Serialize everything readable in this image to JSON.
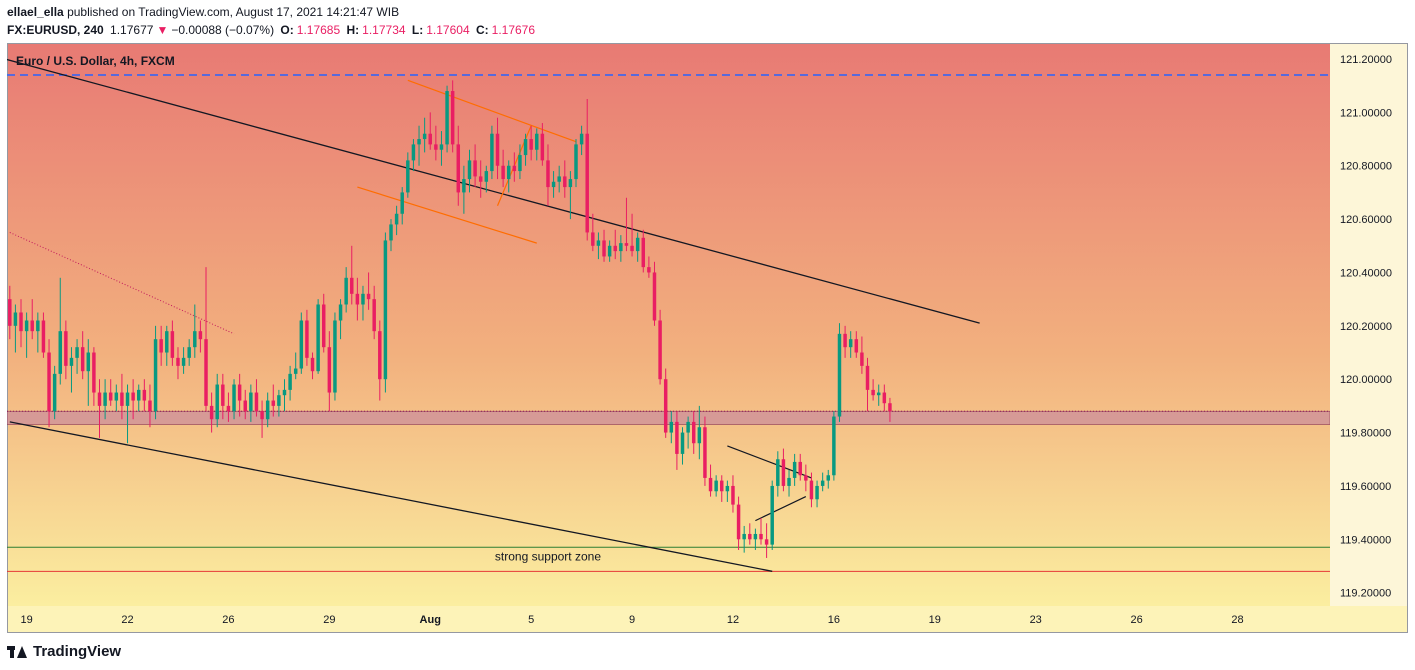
{
  "header": {
    "user": "ellael_ella",
    "published_text": "published on TradingView.com, August 17, 2021 14:21:47 WIB",
    "symbol": "FX:EURUSD, 240",
    "last": "1.17677",
    "change_arrow": "▼",
    "change": "−0.00088 (−0.07%)",
    "o_label": "O:",
    "o_value": "1.17685",
    "h_label": "H:",
    "h_value": "1.17734",
    "l_label": "L:",
    "l_value": "1.17604",
    "c_label": "C:",
    "c_value": "1.17676"
  },
  "footer": {
    "brand": "TradingView",
    "logo_icon": "tradingview-logo-icon"
  },
  "colors": {
    "bull": "#089981",
    "bear": "#e91e63",
    "gradient_top": "#e87a74",
    "gradient_mid": "#f2b07e",
    "gradient_bottom": "#fbeea0"
  },
  "chart_data": {
    "type": "candlestick",
    "title": "Euro / U.S. Dollar, 4h, FXCM",
    "y_ticks": [
      "121.20000",
      "121.00000",
      "120.80000",
      "120.60000",
      "120.40000",
      "120.20000",
      "120.00000",
      "119.80000",
      "119.60000",
      "119.40000",
      "119.20000"
    ],
    "ylim": [
      119.15,
      121.26
    ],
    "x_ticks": [
      {
        "label": "19",
        "bar": 3
      },
      {
        "label": "22",
        "bar": 21
      },
      {
        "label": "26",
        "bar": 39
      },
      {
        "label": "29",
        "bar": 57
      },
      {
        "label": "Aug",
        "bar": 75
      },
      {
        "label": "5",
        "bar": 93
      },
      {
        "label": "9",
        "bar": 111
      },
      {
        "label": "12",
        "bar": 129
      },
      {
        "label": "16",
        "bar": 147
      },
      {
        "label": "19",
        "bar": 165
      },
      {
        "label": "23",
        "bar": 183
      },
      {
        "label": "26",
        "bar": 201
      },
      {
        "label": "28",
        "bar": 219
      }
    ],
    "bar_count": 236,
    "candles": [
      [
        120.3,
        120.35,
        120.15,
        120.2
      ],
      [
        120.2,
        120.28,
        120.1,
        120.25
      ],
      [
        120.25,
        120.3,
        120.12,
        120.18
      ],
      [
        120.18,
        120.25,
        120.08,
        120.22
      ],
      [
        120.22,
        120.3,
        120.15,
        120.18
      ],
      [
        120.18,
        120.25,
        120.1,
        120.22
      ],
      [
        120.22,
        120.25,
        120.08,
        120.1
      ],
      [
        120.1,
        120.15,
        119.82,
        119.88
      ],
      [
        119.88,
        120.05,
        119.85,
        120.02
      ],
      [
        120.02,
        120.38,
        119.98,
        120.18
      ],
      [
        120.18,
        120.22,
        120.0,
        120.05
      ],
      [
        120.05,
        120.12,
        119.95,
        120.08
      ],
      [
        120.08,
        120.15,
        120.02,
        120.12
      ],
      [
        120.12,
        120.18,
        120.0,
        120.03
      ],
      [
        120.03,
        120.15,
        119.9,
        120.1
      ],
      [
        120.1,
        120.12,
        119.9,
        119.95
      ],
      [
        119.95,
        120.0,
        119.78,
        119.9
      ],
      [
        119.9,
        120.0,
        119.85,
        119.95
      ],
      [
        119.95,
        120.0,
        119.9,
        119.92
      ],
      [
        119.92,
        119.98,
        119.88,
        119.95
      ],
      [
        119.95,
        120.02,
        119.85,
        119.9
      ],
      [
        119.9,
        119.98,
        119.76,
        119.95
      ],
      [
        119.95,
        120.0,
        119.85,
        119.92
      ],
      [
        119.92,
        119.98,
        119.88,
        119.96
      ],
      [
        119.96,
        120.0,
        119.88,
        119.92
      ],
      [
        119.92,
        119.98,
        119.82,
        119.88
      ],
      [
        119.88,
        120.2,
        119.85,
        120.15
      ],
      [
        120.15,
        120.2,
        120.05,
        120.1
      ],
      [
        120.1,
        120.2,
        120.05,
        120.18
      ],
      [
        120.18,
        120.22,
        120.05,
        120.08
      ],
      [
        120.08,
        120.12,
        120.0,
        120.05
      ],
      [
        120.05,
        120.12,
        120.02,
        120.08
      ],
      [
        120.08,
        120.15,
        120.05,
        120.12
      ],
      [
        120.12,
        120.28,
        120.08,
        120.18
      ],
      [
        120.18,
        120.22,
        120.1,
        120.15
      ],
      [
        120.15,
        120.42,
        119.88,
        119.9
      ],
      [
        119.9,
        119.95,
        119.8,
        119.85
      ],
      [
        119.85,
        120.02,
        119.82,
        119.98
      ],
      [
        119.98,
        120.02,
        119.85,
        119.9
      ],
      [
        119.9,
        119.95,
        119.84,
        119.88
      ],
      [
        119.88,
        120.0,
        119.85,
        119.98
      ],
      [
        119.98,
        120.02,
        119.86,
        119.92
      ],
      [
        119.92,
        119.96,
        119.85,
        119.88
      ],
      [
        119.88,
        119.98,
        119.84,
        119.95
      ],
      [
        119.95,
        120.0,
        119.86,
        119.88
      ],
      [
        119.88,
        119.92,
        119.78,
        119.85
      ],
      [
        119.85,
        119.95,
        119.82,
        119.92
      ],
      [
        119.92,
        119.98,
        119.86,
        119.9
      ],
      [
        119.9,
        119.96,
        119.86,
        119.94
      ],
      [
        119.94,
        120.0,
        119.88,
        119.96
      ],
      [
        119.96,
        120.05,
        119.92,
        120.02
      ],
      [
        120.02,
        120.1,
        120.0,
        120.04
      ],
      [
        120.04,
        120.25,
        120.02,
        120.22
      ],
      [
        120.22,
        120.26,
        120.05,
        120.08
      ],
      [
        120.08,
        120.1,
        120.0,
        120.03
      ],
      [
        120.03,
        120.3,
        120.02,
        120.28
      ],
      [
        120.28,
        120.32,
        120.1,
        120.12
      ],
      [
        120.12,
        120.18,
        119.88,
        119.95
      ],
      [
        119.95,
        120.25,
        119.92,
        120.22
      ],
      [
        120.22,
        120.3,
        120.15,
        120.28
      ],
      [
        120.28,
        120.42,
        120.25,
        120.38
      ],
      [
        120.38,
        120.5,
        120.28,
        120.32
      ],
      [
        120.32,
        120.38,
        120.22,
        120.28
      ],
      [
        120.28,
        120.35,
        120.22,
        120.32
      ],
      [
        120.32,
        120.4,
        120.26,
        120.3
      ],
      [
        120.3,
        120.35,
        120.15,
        120.18
      ],
      [
        120.18,
        120.22,
        119.92,
        120.0
      ],
      [
        120.0,
        120.55,
        119.95,
        120.52
      ],
      [
        120.52,
        120.6,
        120.48,
        120.58
      ],
      [
        120.58,
        120.65,
        120.54,
        120.62
      ],
      [
        120.62,
        120.72,
        120.58,
        120.7
      ],
      [
        120.7,
        120.85,
        120.68,
        120.82
      ],
      [
        120.82,
        120.9,
        120.78,
        120.88
      ],
      [
        120.88,
        120.95,
        120.8,
        120.9
      ],
      [
        120.9,
        120.98,
        120.85,
        120.92
      ],
      [
        120.92,
        121.0,
        120.86,
        120.88
      ],
      [
        120.88,
        120.95,
        120.82,
        120.86
      ],
      [
        120.86,
        120.93,
        120.8,
        120.88
      ],
      [
        120.88,
        121.1,
        120.85,
        121.08
      ],
      [
        121.08,
        121.12,
        120.85,
        120.88
      ],
      [
        120.88,
        120.95,
        120.65,
        120.7
      ],
      [
        120.7,
        120.8,
        120.62,
        120.75
      ],
      [
        120.75,
        120.86,
        120.7,
        120.82
      ],
      [
        120.82,
        120.88,
        120.72,
        120.76
      ],
      [
        120.76,
        120.82,
        120.68,
        120.74
      ],
      [
        120.74,
        120.8,
        120.7,
        120.78
      ],
      [
        120.78,
        120.95,
        120.75,
        120.92
      ],
      [
        120.92,
        120.98,
        120.75,
        120.8
      ],
      [
        120.8,
        120.86,
        120.72,
        120.75
      ],
      [
        120.75,
        120.82,
        120.7,
        120.8
      ],
      [
        120.8,
        120.85,
        120.74,
        120.78
      ],
      [
        120.78,
        120.88,
        120.75,
        120.84
      ],
      [
        120.84,
        120.92,
        120.8,
        120.9
      ],
      [
        120.9,
        120.95,
        120.82,
        120.86
      ],
      [
        120.86,
        120.94,
        120.82,
        120.92
      ],
      [
        120.92,
        120.96,
        120.8,
        120.82
      ],
      [
        120.82,
        120.88,
        120.65,
        120.72
      ],
      [
        120.72,
        120.78,
        120.68,
        120.74
      ],
      [
        120.74,
        120.8,
        120.7,
        120.76
      ],
      [
        120.76,
        120.82,
        120.68,
        120.72
      ],
      [
        120.72,
        120.78,
        120.6,
        120.75
      ],
      [
        120.75,
        120.9,
        120.72,
        120.88
      ],
      [
        120.88,
        120.95,
        120.84,
        120.92
      ],
      [
        120.92,
        121.05,
        120.52,
        120.55
      ],
      [
        120.55,
        120.62,
        120.48,
        120.5
      ],
      [
        120.5,
        120.55,
        120.45,
        120.52
      ],
      [
        120.52,
        120.56,
        120.44,
        120.46
      ],
      [
        120.46,
        120.52,
        120.44,
        120.5
      ],
      [
        120.5,
        120.56,
        120.45,
        120.48
      ],
      [
        120.48,
        120.54,
        120.44,
        120.51
      ],
      [
        120.51,
        120.68,
        120.48,
        120.5
      ],
      [
        120.5,
        120.62,
        120.46,
        120.48
      ],
      [
        120.48,
        120.55,
        120.44,
        120.53
      ],
      [
        120.53,
        120.56,
        120.4,
        120.42
      ],
      [
        120.42,
        120.46,
        120.38,
        120.4
      ],
      [
        120.4,
        120.44,
        120.2,
        120.22
      ],
      [
        120.22,
        120.26,
        119.98,
        120.0
      ],
      [
        120.0,
        120.04,
        119.78,
        119.8
      ],
      [
        119.8,
        119.88,
        119.76,
        119.84
      ],
      [
        119.84,
        119.88,
        119.66,
        119.72
      ],
      [
        119.72,
        119.82,
        119.68,
        119.8
      ],
      [
        119.8,
        119.86,
        119.74,
        119.84
      ],
      [
        119.84,
        119.88,
        119.72,
        119.76
      ],
      [
        119.76,
        119.9,
        119.7,
        119.82
      ],
      [
        119.82,
        119.86,
        119.6,
        119.63
      ],
      [
        119.63,
        119.68,
        119.56,
        119.58
      ],
      [
        119.58,
        119.64,
        119.56,
        119.62
      ],
      [
        119.62,
        119.64,
        119.54,
        119.58
      ],
      [
        119.58,
        119.62,
        119.54,
        119.6
      ],
      [
        119.6,
        119.64,
        119.5,
        119.53
      ],
      [
        119.53,
        119.56,
        119.36,
        119.4
      ],
      [
        119.4,
        119.45,
        119.35,
        119.42
      ],
      [
        119.42,
        119.46,
        119.38,
        119.4
      ],
      [
        119.4,
        119.44,
        119.36,
        119.42
      ],
      [
        119.42,
        119.48,
        119.38,
        119.4
      ],
      [
        119.4,
        119.46,
        119.33,
        119.38
      ],
      [
        119.38,
        119.62,
        119.36,
        119.6
      ],
      [
        119.6,
        119.73,
        119.56,
        119.7
      ],
      [
        119.7,
        119.74,
        119.58,
        119.6
      ],
      [
        119.6,
        119.66,
        119.56,
        119.63
      ],
      [
        119.63,
        119.72,
        119.6,
        119.69
      ],
      [
        119.69,
        119.72,
        119.62,
        119.64
      ],
      [
        119.64,
        119.68,
        119.58,
        119.62
      ],
      [
        119.62,
        119.65,
        119.52,
        119.55
      ],
      [
        119.55,
        119.62,
        119.52,
        119.6
      ],
      [
        119.6,
        119.65,
        119.58,
        119.62
      ],
      [
        119.62,
        119.66,
        119.59,
        119.64
      ],
      [
        119.64,
        119.88,
        119.62,
        119.86
      ],
      [
        119.86,
        120.21,
        119.84,
        120.17
      ],
      [
        120.17,
        120.2,
        120.08,
        120.12
      ],
      [
        120.12,
        120.18,
        120.08,
        120.15
      ],
      [
        120.15,
        120.18,
        120.08,
        120.1
      ],
      [
        120.1,
        120.16,
        120.02,
        120.05
      ],
      [
        120.05,
        120.08,
        119.88,
        119.96
      ],
      [
        119.96,
        120.0,
        119.92,
        119.94
      ],
      [
        119.94,
        119.98,
        119.9,
        119.95
      ],
      [
        119.95,
        119.98,
        119.88,
        119.91
      ],
      [
        119.91,
        119.93,
        119.84,
        119.88
      ]
    ],
    "lines": [
      {
        "kind": "trend",
        "color": "#131722",
        "width": 1.3,
        "dash": "",
        "p1": [
          -36,
          121.4
        ],
        "p2": [
          173,
          120.21
        ]
      },
      {
        "kind": "trend",
        "color": "#131722",
        "width": 1.3,
        "dash": "",
        "p1": [
          0,
          119.84
        ],
        "p2": [
          136,
          119.28
        ]
      },
      {
        "kind": "trend",
        "color": "#c2185b",
        "width": 1,
        "dash": "1,2",
        "p1": [
          0,
          120.55
        ],
        "p2": [
          40,
          120.17
        ]
      },
      {
        "kind": "channel",
        "color": "#ff6d00",
        "width": 1.2,
        "dash": "",
        "p1": [
          71,
          121.12
        ],
        "p2": [
          101,
          120.89
        ]
      },
      {
        "kind": "channel",
        "color": "#ff6d00",
        "width": 1.2,
        "dash": "",
        "p1": [
          62,
          120.72
        ],
        "p2": [
          94,
          120.51
        ]
      },
      {
        "kind": "channel",
        "color": "#ff6d00",
        "width": 1.2,
        "dash": "",
        "p1": [
          87,
          120.65
        ],
        "p2": [
          93,
          120.95
        ]
      },
      {
        "kind": "triangle",
        "color": "#131722",
        "width": 1.2,
        "dash": "",
        "p1": [
          128,
          119.75
        ],
        "p2": [
          143,
          119.63
        ]
      },
      {
        "kind": "triangle",
        "color": "#131722",
        "width": 1.2,
        "dash": "",
        "p1": [
          133,
          119.47
        ],
        "p2": [
          142,
          119.56
        ]
      }
    ],
    "hlines": [
      {
        "price": 121.14,
        "color": "#2962ff",
        "dash": "8,5",
        "width": 1.5
      },
      {
        "price": 119.37,
        "color": "#2e7d32",
        "dash": "",
        "width": 1
      },
      {
        "price": 119.28,
        "color": "#e53935",
        "dash": "",
        "width": 1
      }
    ],
    "zone": {
      "top": 119.88,
      "bottom": 119.83,
      "color": "#c98a9c"
    },
    "current_price_line": 119.88,
    "support_label": "strong support zone",
    "support_label_price": 119.32,
    "support_label_bar": 96
  }
}
